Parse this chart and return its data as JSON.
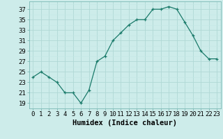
{
  "x": [
    0,
    1,
    2,
    3,
    4,
    5,
    6,
    7,
    8,
    9,
    10,
    11,
    12,
    13,
    14,
    15,
    16,
    17,
    18,
    19,
    20,
    21,
    22,
    23
  ],
  "y": [
    24,
    25,
    24,
    23,
    21,
    21,
    19,
    21.5,
    27,
    28,
    31,
    32.5,
    34,
    35,
    35,
    37,
    37,
    37.5,
    37,
    34.5,
    32,
    29,
    27.5,
    27.5
  ],
  "line_color": "#1a7a6a",
  "marker_color": "#1a7a6a",
  "bg_color": "#cdecea",
  "grid_major_color": "#b0d8d5",
  "grid_minor_color": "#c4e8e5",
  "xlabel": "Humidex (Indice chaleur)",
  "ylabel_ticks": [
    19,
    21,
    23,
    25,
    27,
    29,
    31,
    33,
    35,
    37
  ],
  "ylim": [
    18.0,
    38.5
  ],
  "xlim": [
    -0.5,
    23.5
  ],
  "xtick_labels": [
    "0",
    "1",
    "2",
    "3",
    "4",
    "5",
    "6",
    "7",
    "8",
    "9",
    "10",
    "11",
    "12",
    "13",
    "14",
    "15",
    "16",
    "17",
    "18",
    "19",
    "20",
    "21",
    "22",
    "23"
  ],
  "xlabel_fontsize": 7.5,
  "tick_fontsize": 6.5,
  "figsize": [
    3.2,
    2.0
  ],
  "dpi": 100
}
